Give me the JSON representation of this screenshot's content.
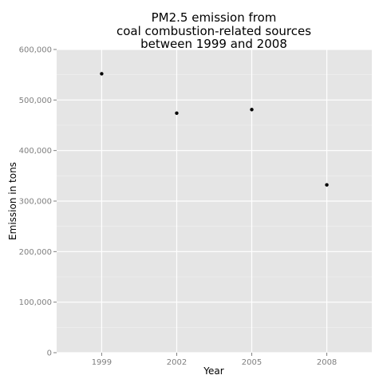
{
  "chart_data": {
    "type": "scatter",
    "title_lines": [
      "PM2.5 emission from",
      "coal combustion-related sources",
      "between 1999 and 2008"
    ],
    "xlabel": "Year",
    "ylabel": "Emission in tons",
    "x": [
      "1999",
      "2002",
      "2005",
      "2008"
    ],
    "values": [
      552000,
      474000,
      481000,
      332000
    ],
    "ylim": [
      0,
      600000
    ],
    "yticks": [
      0,
      100000,
      200000,
      300000,
      400000,
      500000,
      600000
    ],
    "ytick_labels": [
      "0",
      "100,000",
      "200,000",
      "300,000",
      "400,000",
      "500,000",
      "600,000"
    ],
    "grid": true,
    "legend": "none"
  },
  "colors": {
    "panel_background": "#e5e5e5",
    "grid_major": "#ffffff",
    "grid_minor": "#f2f2f2",
    "point": "#000000",
    "tick_label": "#7f7f7f"
  }
}
